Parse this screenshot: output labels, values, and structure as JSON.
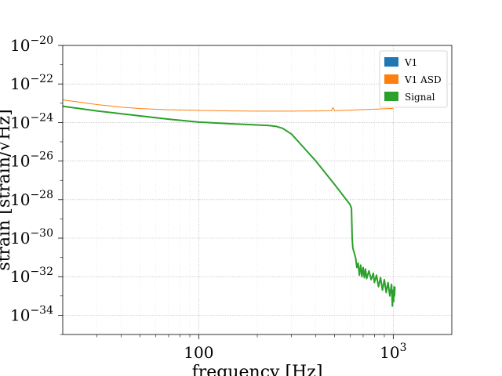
{
  "chart_data": {
    "type": "line",
    "title": "",
    "xlabel": "frequency [Hz]",
    "ylabel": "strain [strain/√Hz]",
    "x_scale": "log",
    "y_scale": "log",
    "xlim": [
      20,
      2000
    ],
    "ylim": [
      1e-35,
      1e-20
    ],
    "grid": true,
    "legend_position": "top-right",
    "x_ticks": [
      {
        "value": 100,
        "label": "100"
      },
      {
        "value": 1000,
        "label": "10",
        "exp": "3"
      }
    ],
    "y_ticks": [
      {
        "value": 1e-20,
        "label": "10",
        "exp": "−20"
      },
      {
        "value": 1e-22,
        "label": "10",
        "exp": "−22"
      },
      {
        "value": 1e-24,
        "label": "10",
        "exp": "−24"
      },
      {
        "value": 1e-26,
        "label": "10",
        "exp": "−26"
      },
      {
        "value": 1e-28,
        "label": "10",
        "exp": "−28"
      },
      {
        "value": 1e-30,
        "label": "10",
        "exp": "−30"
      },
      {
        "value": 1e-32,
        "label": "10",
        "exp": "−32"
      },
      {
        "value": 1e-34,
        "label": "10",
        "exp": "−34"
      }
    ],
    "series": [
      {
        "name": "V1",
        "color": "#1f77b4",
        "width": 1,
        "x": [],
        "y": []
      },
      {
        "name": "V1 ASD",
        "color": "#ff7f0e",
        "width": 1,
        "x": [
          20,
          25,
          30,
          40,
          50,
          70,
          100,
          150,
          200,
          300,
          400,
          480,
          490,
          500,
          510,
          600,
          800,
          1000
        ],
        "y": [
          1.5e-23,
          1.1e-23,
          8.5e-24,
          6.3e-24,
          5.3e-24,
          4.6e-24,
          4.3e-24,
          4e-24,
          3.9e-24,
          3.9e-24,
          4e-24,
          4.1e-24,
          6e-24,
          4.1e-24,
          4.2e-24,
          4.4e-24,
          4.9e-24,
          5.4e-24
        ]
      },
      {
        "name": "Signal",
        "color": "#2ca02c",
        "width": 2,
        "x": [
          20,
          30,
          50,
          70,
          100,
          150,
          200,
          230,
          250,
          270,
          300,
          400,
          500,
          600,
          610,
          615,
          620,
          640,
          650,
          660,
          670,
          680,
          690,
          700,
          710,
          720,
          730,
          750,
          770,
          790,
          800,
          820,
          840,
          860,
          880,
          900,
          920,
          940,
          960,
          980,
          990,
          1000,
          1005,
          1010,
          1015,
          1020
        ],
        "y": [
          7e-24,
          4e-24,
          2.2e-24,
          1.5e-24,
          1.05e-24,
          8.5e-25,
          7.5e-25,
          7e-25,
          6.3e-25,
          5e-25,
          2.5e-25,
          1e-26,
          6e-28,
          5.5e-29,
          3.5e-29,
          1e-30,
          3e-31,
          1e-31,
          3e-32,
          5e-32,
          1.2e-32,
          4e-32,
          1e-32,
          3e-32,
          9e-33,
          2.5e-32,
          8e-33,
          2e-32,
          7e-33,
          1.5e-32,
          5e-33,
          1.2e-32,
          3e-33,
          9e-33,
          2e-33,
          7e-33,
          1.5e-33,
          5e-33,
          1e-33,
          4e-33,
          3e-34,
          2e-33,
          5e-34,
          3e-33,
          1e-33,
          3e-33
        ]
      }
    ]
  }
}
